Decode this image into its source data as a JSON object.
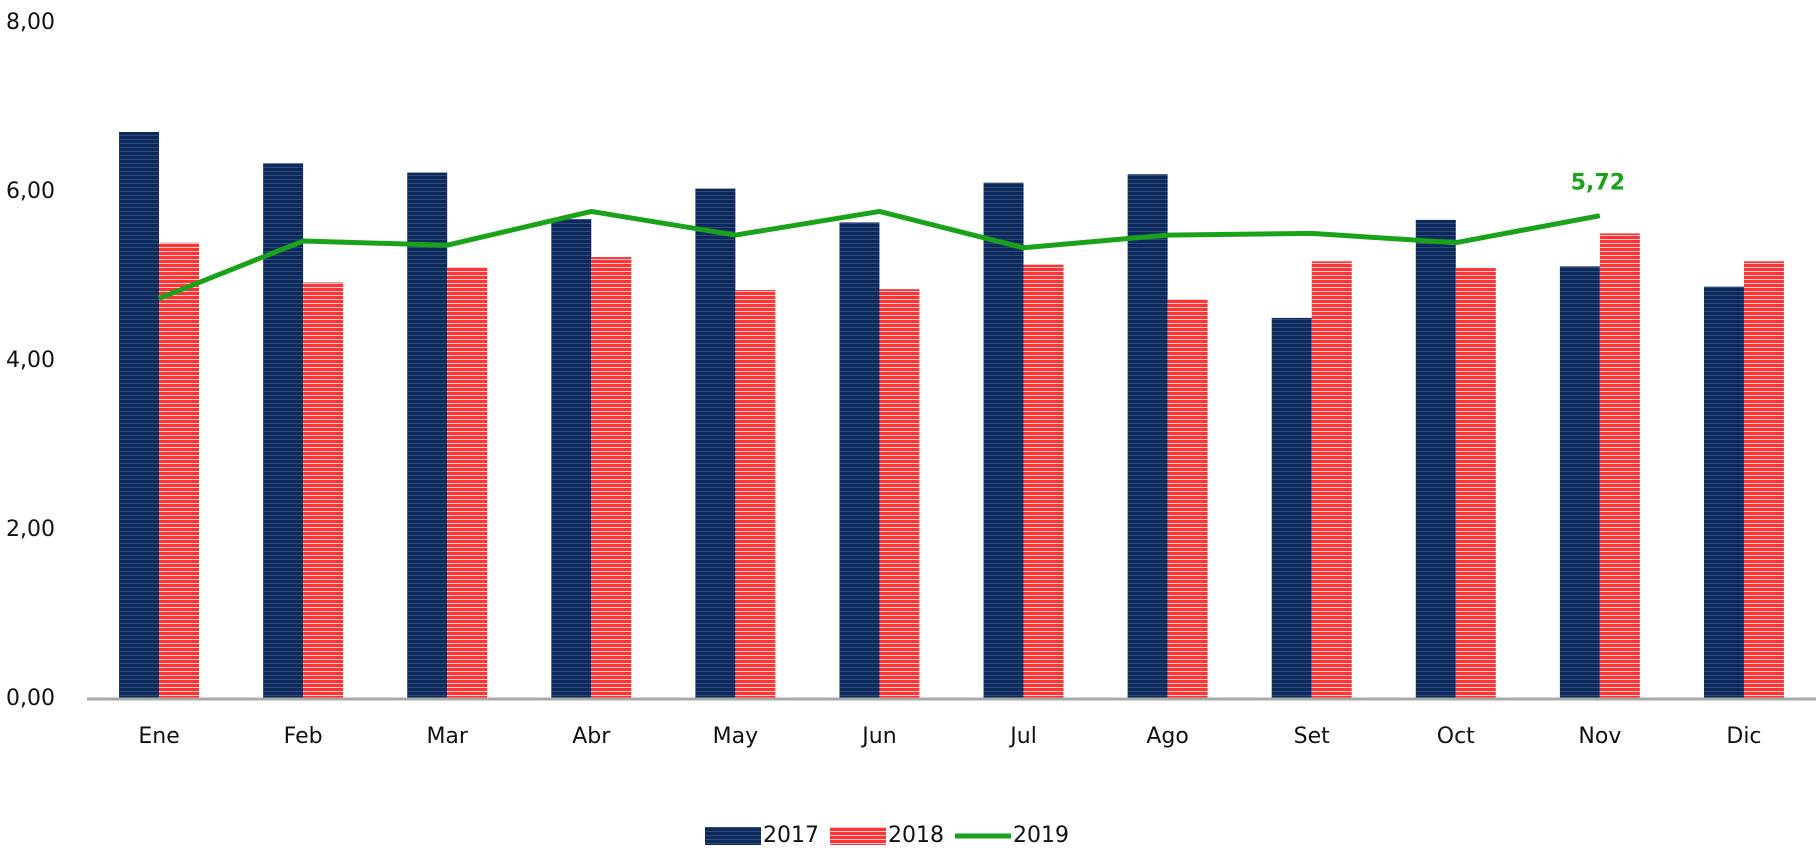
{
  "chart_data": {
    "type": "bar_line",
    "categories": [
      "Ene",
      "Feb",
      "Mar",
      "Abr",
      "May",
      "Jun",
      "Jul",
      "Ago",
      "Set",
      "Oct",
      "Nov",
      "Dic"
    ],
    "series": [
      {
        "name": "2017",
        "type": "bar",
        "color": "#0d2a5e",
        "values": [
          6.71,
          6.34,
          6.23,
          5.68,
          6.04,
          5.64,
          6.11,
          6.21,
          4.51,
          5.67,
          5.12,
          4.88
        ]
      },
      {
        "name": "2018",
        "type": "bar",
        "color": "#ff3333",
        "values": [
          5.4,
          4.93,
          5.11,
          5.23,
          4.84,
          4.85,
          5.14,
          4.73,
          5.18,
          5.1,
          5.51,
          5.18
        ]
      },
      {
        "name": "2019",
        "type": "line",
        "color": "#1aa31a",
        "values": [
          4.74,
          5.42,
          5.37,
          5.77,
          5.49,
          5.77,
          5.34,
          5.49,
          5.51,
          5.4,
          5.72,
          null
        ],
        "value_labels": [
          null,
          null,
          null,
          null,
          null,
          null,
          null,
          null,
          null,
          null,
          "5,72",
          null
        ]
      }
    ],
    "ylim": [
      0,
      8
    ],
    "yticks": [
      {
        "value": 0,
        "label": "0,00"
      },
      {
        "value": 2,
        "label": "2,00"
      },
      {
        "value": 4,
        "label": "4,00"
      },
      {
        "value": 6,
        "label": "6,00"
      },
      {
        "value": 8,
        "label": "8,00"
      }
    ],
    "grid": false,
    "legend": "bottom"
  }
}
